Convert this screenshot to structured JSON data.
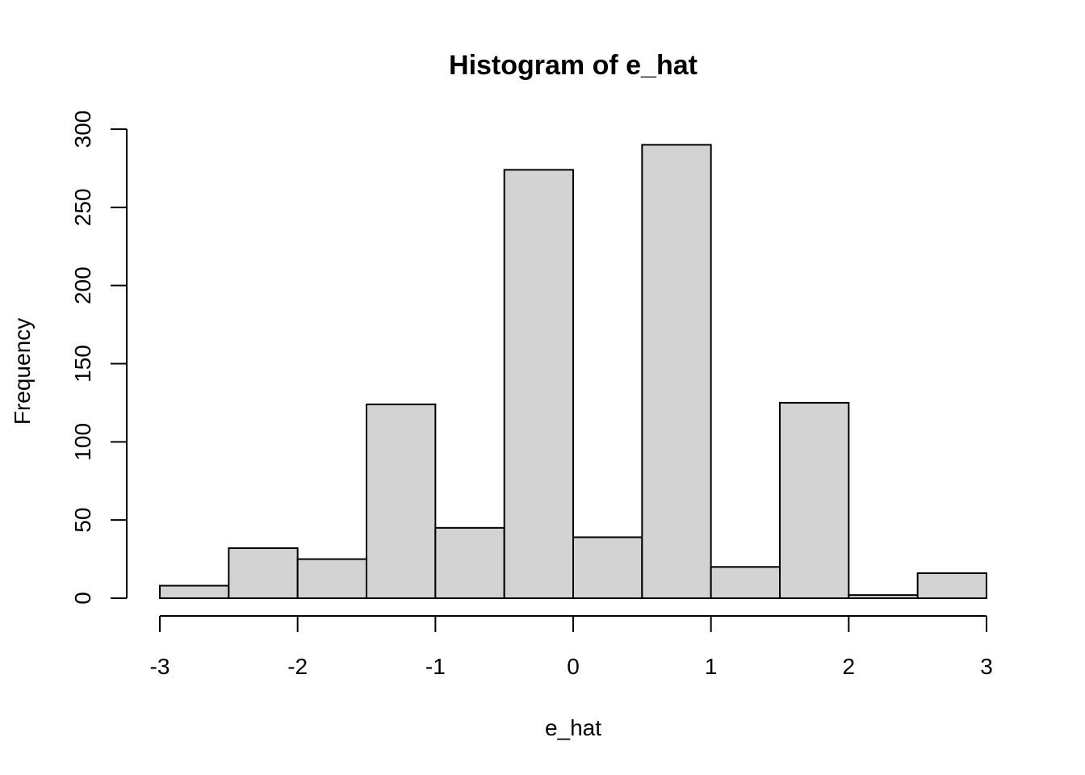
{
  "chart_data": {
    "type": "bar",
    "title": "Histogram of e_hat",
    "xlabel": "e_hat",
    "ylabel": "Frequency",
    "bins": [
      {
        "start": -3.0,
        "end": -2.5,
        "count": 8
      },
      {
        "start": -2.5,
        "end": -2.0,
        "count": 32
      },
      {
        "start": -2.0,
        "end": -1.5,
        "count": 25
      },
      {
        "start": -1.5,
        "end": -1.0,
        "count": 124
      },
      {
        "start": -1.0,
        "end": -0.5,
        "count": 45
      },
      {
        "start": -0.5,
        "end": 0.0,
        "count": 274
      },
      {
        "start": 0.0,
        "end": 0.5,
        "count": 39
      },
      {
        "start": 0.5,
        "end": 1.0,
        "count": 290
      },
      {
        "start": 1.0,
        "end": 1.5,
        "count": 20
      },
      {
        "start": 1.5,
        "end": 2.0,
        "count": 125
      },
      {
        "start": 2.0,
        "end": 2.5,
        "count": 2
      },
      {
        "start": 2.5,
        "end": 3.0,
        "count": 16
      }
    ],
    "xlim": [
      -3,
      3
    ],
    "ylim": [
      0,
      300
    ],
    "x_ticks": [
      "-3",
      "-2",
      "-1",
      "0",
      "1",
      "2",
      "3"
    ],
    "y_ticks": [
      "0",
      "50",
      "100",
      "150",
      "200",
      "250",
      "300"
    ],
    "grid": false
  }
}
